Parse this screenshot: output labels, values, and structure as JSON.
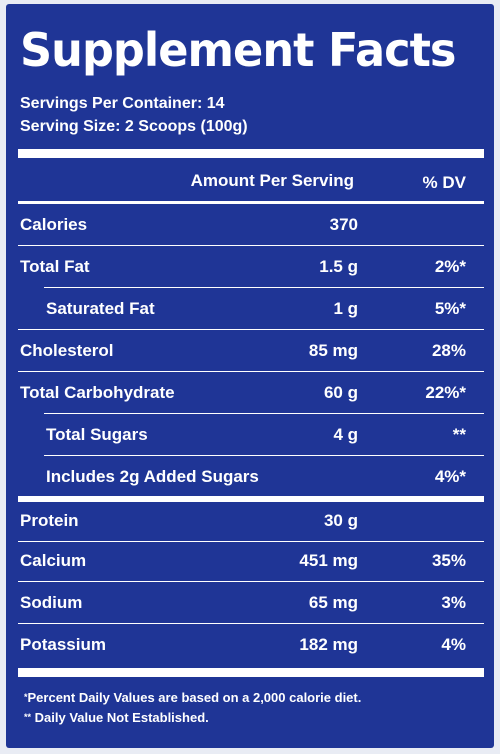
{
  "title": "Supplement Facts",
  "servings_per_container": "Servings Per Container: 14",
  "serving_size": "Serving Size: 2 Scoops (100g)",
  "header": {
    "amount": "Amount Per Serving",
    "dv": "% DV"
  },
  "rows": [
    {
      "label": "Calories",
      "amount": "370",
      "dv": ""
    },
    {
      "label": "Total Fat",
      "amount": "1.5 g",
      "dv": "2%*"
    },
    {
      "label": "Saturated Fat",
      "amount": "1 g",
      "dv": "5%*"
    },
    {
      "label": "Cholesterol",
      "amount": "85 mg",
      "dv": "28%"
    },
    {
      "label": "Total Carbohydrate",
      "amount": "60 g",
      "dv": "22%*"
    },
    {
      "label": "Total Sugars",
      "amount": "4 g",
      "dv": "**"
    },
    {
      "label": "Includes 2g Added Sugars",
      "amount": "",
      "dv": "4%*"
    },
    {
      "label": "Protein",
      "amount": "30 g",
      "dv": ""
    },
    {
      "label": "Calcium",
      "amount": "451 mg",
      "dv": "35%"
    },
    {
      "label": "Sodium",
      "amount": "65 mg",
      "dv": "3%"
    },
    {
      "label": "Potassium",
      "amount": "182 mg",
      "dv": "4%"
    }
  ],
  "footnotes": {
    "mark1": "*",
    "note1": "Percent Daily Values are based on a 2,000 calorie diet.",
    "mark2": "**",
    "note2": "Daily Value Not Established."
  },
  "colors": {
    "panel_background": "#1f3596",
    "text": "#ffffff"
  }
}
